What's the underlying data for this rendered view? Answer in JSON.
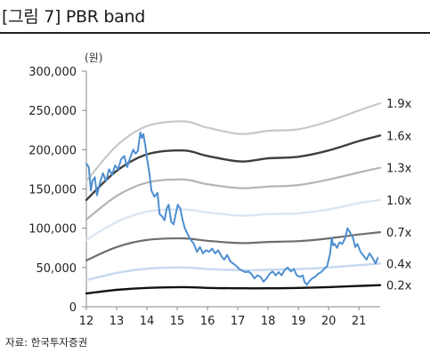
{
  "title": "[그림 7] PBR band",
  "source": "자료:  한국투자증권",
  "chart_data": {
    "type": "line",
    "unit_label": "(원)",
    "ylim": [
      0,
      300000
    ],
    "y_ticks": [
      {
        "value": 0,
        "label": "0"
      },
      {
        "value": 50000,
        "label": "50,000"
      },
      {
        "value": 100000,
        "label": "100,000"
      },
      {
        "value": 150000,
        "label": "150,000"
      },
      {
        "value": 200000,
        "label": "200,000"
      },
      {
        "value": 250000,
        "label": "250,000"
      },
      {
        "value": 300000,
        "label": "300,000"
      }
    ],
    "xlim": [
      2012,
      2021.7
    ],
    "x_ticks": [
      {
        "value": 2012,
        "label": "12"
      },
      {
        "value": 2013,
        "label": "13"
      },
      {
        "value": 2014,
        "label": "14"
      },
      {
        "value": 2015,
        "label": "15"
      },
      {
        "value": 2016,
        "label": "16"
      },
      {
        "value": 2017,
        "label": "17"
      },
      {
        "value": 2018,
        "label": "18"
      },
      {
        "value": 2019,
        "label": "19"
      },
      {
        "value": 2020,
        "label": "20"
      },
      {
        "value": 2021,
        "label": "21"
      }
    ],
    "grid": false,
    "series": [
      {
        "name": "1.9x",
        "color": "#c8c8c8",
        "width": 2.2,
        "x": [
          2012.0,
          2013.0,
          2014.0,
          2015.2,
          2016.0,
          2017.1,
          2018.0,
          2019.0,
          2020.0,
          2021.0,
          2021.7
        ],
        "y": [
          160000,
          205000,
          230000,
          236000,
          228000,
          220000,
          224000,
          226000,
          236000,
          250000,
          259000
        ]
      },
      {
        "name": "1.6x",
        "color": "#3f3f3f",
        "width": 2.4,
        "x": [
          2012.0,
          2013.0,
          2014.0,
          2015.2,
          2016.0,
          2017.1,
          2018.0,
          2019.0,
          2020.0,
          2021.0,
          2021.7
        ],
        "y": [
          136000,
          173000,
          194000,
          199000,
          192000,
          185000,
          189000,
          191000,
          199000,
          211000,
          218000
        ]
      },
      {
        "name": "1.3x",
        "color": "#b4b4b4",
        "width": 2.2,
        "x": [
          2012.0,
          2013.0,
          2014.0,
          2015.2,
          2016.0,
          2017.1,
          2018.0,
          2019.0,
          2020.0,
          2021.0,
          2021.7
        ],
        "y": [
          111000,
          141000,
          158000,
          162000,
          156000,
          151000,
          153000,
          155000,
          162000,
          171000,
          177000
        ]
      },
      {
        "name": "1.0x",
        "color": "#dce6f2",
        "width": 2.4,
        "x": [
          2012.0,
          2013.0,
          2014.0,
          2015.2,
          2016.0,
          2017.1,
          2018.0,
          2019.0,
          2020.0,
          2021.0,
          2021.7
        ],
        "y": [
          85000,
          108000,
          121000,
          124000,
          120000,
          116000,
          118000,
          119000,
          124000,
          132000,
          136000
        ]
      },
      {
        "name": "0.7x",
        "color": "#6e6e6e",
        "width": 2.2,
        "x": [
          2012.0,
          2013.0,
          2014.0,
          2015.2,
          2016.0,
          2017.1,
          2018.0,
          2019.0,
          2020.0,
          2021.0,
          2021.7
        ],
        "y": [
          59000,
          76000,
          85000,
          87000,
          84000,
          81000,
          82500,
          83500,
          87000,
          92000,
          95000
        ]
      },
      {
        "name": "0.4x",
        "color": "#c5d9f1",
        "width": 2.4,
        "x": [
          2012.0,
          2013.0,
          2014.0,
          2015.2,
          2016.0,
          2017.1,
          2018.0,
          2019.0,
          2020.0,
          2021.0,
          2021.7
        ],
        "y": [
          34000,
          43000,
          48500,
          50000,
          48000,
          46500,
          47000,
          48000,
          50000,
          53000,
          55000
        ]
      },
      {
        "name": "0.2x",
        "color": "#111111",
        "width": 2.4,
        "x": [
          2012.0,
          2013.0,
          2014.0,
          2015.2,
          2016.0,
          2017.1,
          2018.0,
          2019.0,
          2020.0,
          2021.0,
          2021.7
        ],
        "y": [
          17000,
          21500,
          24000,
          25000,
          24000,
          23500,
          23500,
          24000,
          25000,
          26500,
          27500
        ]
      }
    ],
    "price": {
      "color": "#4f8fd0",
      "width": 2,
      "x": [
        2012.0,
        2012.08,
        2012.15,
        2012.2,
        2012.28,
        2012.35,
        2012.45,
        2012.55,
        2012.65,
        2012.75,
        2012.85,
        2012.95,
        2013.05,
        2013.15,
        2013.25,
        2013.35,
        2013.45,
        2013.55,
        2013.62,
        2013.7,
        2013.78,
        2013.83,
        2013.88,
        2013.95,
        2014.0,
        2014.08,
        2014.15,
        2014.25,
        2014.35,
        2014.42,
        2014.5,
        2014.58,
        2014.65,
        2014.72,
        2014.8,
        2014.88,
        2014.95,
        2015.02,
        2015.1,
        2015.18,
        2015.25,
        2015.35,
        2015.45,
        2015.55,
        2015.65,
        2015.75,
        2015.85,
        2015.95,
        2016.05,
        2016.15,
        2016.25,
        2016.35,
        2016.45,
        2016.55,
        2016.65,
        2016.75,
        2016.85,
        2016.95,
        2017.05,
        2017.15,
        2017.25,
        2017.35,
        2017.45,
        2017.55,
        2017.65,
        2017.75,
        2017.85,
        2017.95,
        2018.05,
        2018.15,
        2018.25,
        2018.35,
        2018.45,
        2018.55,
        2018.65,
        2018.75,
        2018.85,
        2018.95,
        2019.05,
        2019.15,
        2019.2,
        2019.28,
        2019.35,
        2019.45,
        2019.55,
        2019.65,
        2019.75,
        2019.85,
        2019.95,
        2020.05,
        2020.1,
        2020.15,
        2020.2,
        2020.28,
        2020.35,
        2020.45,
        2020.55,
        2020.62,
        2020.7,
        2020.8,
        2020.88,
        2020.95,
        2021.05,
        2021.15,
        2021.25,
        2021.35,
        2021.45,
        2021.55,
        2021.62
      ],
      "y": [
        182000,
        178000,
        148000,
        160000,
        165000,
        142000,
        158000,
        170000,
        160000,
        175000,
        168000,
        180000,
        175000,
        188000,
        192000,
        178000,
        190000,
        200000,
        195000,
        198000,
        222000,
        215000,
        220000,
        205000,
        190000,
        170000,
        148000,
        140000,
        145000,
        118000,
        115000,
        110000,
        125000,
        130000,
        108000,
        105000,
        118000,
        130000,
        125000,
        110000,
        100000,
        92000,
        85000,
        80000,
        70000,
        76000,
        68000,
        72000,
        70000,
        74000,
        68000,
        72000,
        65000,
        60000,
        66000,
        58000,
        55000,
        52000,
        48000,
        46000,
        44000,
        45000,
        42000,
        36000,
        40000,
        38000,
        32000,
        36000,
        42000,
        45000,
        40000,
        44000,
        40000,
        47000,
        50000,
        45000,
        48000,
        40000,
        38000,
        40000,
        32000,
        28000,
        32000,
        36000,
        38000,
        42000,
        44000,
        48000,
        52000,
        68000,
        88000,
        78000,
        80000,
        75000,
        82000,
        80000,
        88000,
        100000,
        95000,
        88000,
        76000,
        80000,
        70000,
        65000,
        60000,
        68000,
        62000,
        55000,
        62000
      ]
    }
  }
}
